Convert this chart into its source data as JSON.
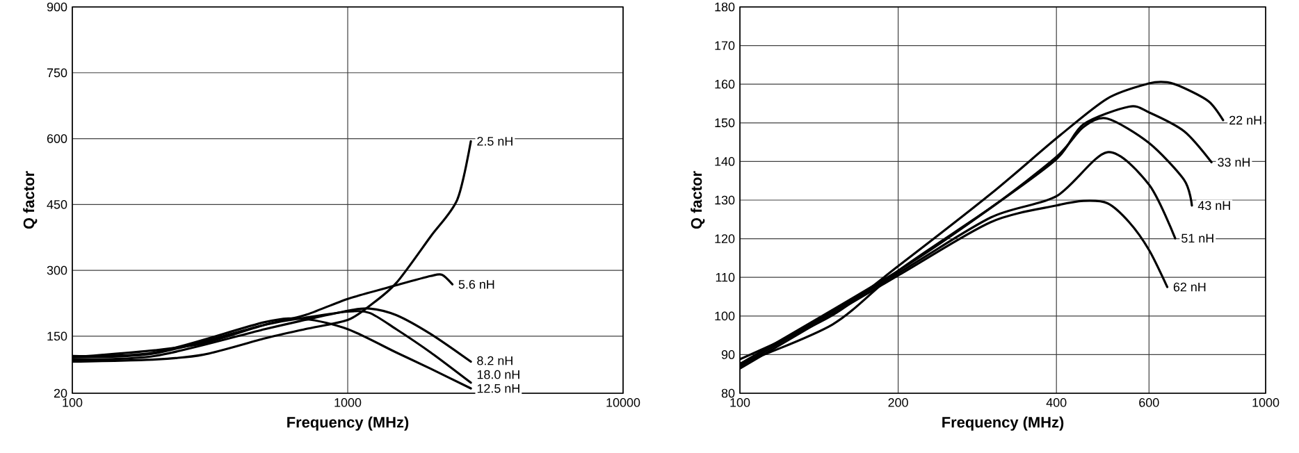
{
  "chart_data": [
    {
      "type": "line",
      "xlabel": "Frequency (MHz)",
      "ylabel": "Q factor",
      "log": "x",
      "grid": true,
      "legend": false,
      "line_style": "solid",
      "marker": "none",
      "xlim": [
        100,
        10000
      ],
      "ylim": [
        20,
        900
      ],
      "xticks": [
        100,
        1000,
        10000
      ],
      "yticks": [
        20,
        150,
        300,
        450,
        600,
        750,
        900
      ],
      "series": [
        {
          "name": "2.5 nH",
          "color": "#000000",
          "x": [
            100,
            200,
            300,
            500,
            700,
            1000,
            1200,
            1500,
            2000,
            2500,
            2800
          ],
          "values": [
            92,
            97,
            108,
            145,
            166,
            187,
            219,
            271,
            377,
            461,
            594
          ]
        },
        {
          "name": "5.6 nH",
          "color": "#000000",
          "x": [
            100,
            200,
            300,
            500,
            700,
            1000,
            1500,
            2000,
            2200,
            2400
          ],
          "values": [
            102,
            118,
            134,
            176,
            198,
            235,
            266,
            287,
            290,
            268
          ]
        },
        {
          "name": "8.2 nH",
          "color": "#000000",
          "x": [
            100,
            200,
            500,
            700,
            1000,
            1200,
            1500,
            2000,
            2800
          ],
          "values": [
            97,
            105,
            166,
            187,
            208,
            213,
            198,
            155,
            92
          ]
        },
        {
          "name": "18.0 nH",
          "color": "#000000",
          "x": [
            100,
            200,
            500,
            700,
            1000,
            1200,
            1500,
            2000,
            2800
          ],
          "values": [
            102,
            111,
            176,
            192,
            206,
            203,
            166,
            113,
            44
          ]
        },
        {
          "name": "12.5 nH",
          "color": "#000000",
          "x": [
            100,
            200,
            500,
            700,
            1000,
            1500,
            2000,
            2800
          ],
          "values": [
            105,
            113,
            182,
            189,
            166,
            113,
            76,
            31
          ]
        }
      ]
    },
    {
      "type": "line",
      "xlabel": "Frequency (MHz)",
      "ylabel": "Q factor",
      "log": "x",
      "grid": true,
      "legend": false,
      "line_style": "solid",
      "marker": "none",
      "xlim": [
        100,
        1000
      ],
      "ylim": [
        80,
        180
      ],
      "xticks": [
        100,
        200,
        400,
        600,
        1000
      ],
      "yticks": [
        80,
        90,
        100,
        110,
        120,
        130,
        140,
        150,
        160,
        170,
        180
      ],
      "series": [
        {
          "name": "22 nH",
          "color": "#000000",
          "x": [
            100,
            150,
            200,
            300,
            400,
            500,
            600,
            650,
            700,
            780,
            830
          ],
          "values": [
            88.8,
            100.2,
            112.9,
            131.6,
            146,
            156.3,
            160.2,
            160.5,
            159,
            155.5,
            150.7
          ]
        },
        {
          "name": "33 nH",
          "color": "#000000",
          "x": [
            100,
            150,
            200,
            300,
            400,
            450,
            550,
            600,
            700,
            789
          ],
          "values": [
            87.6,
            97.8,
            111.7,
            128,
            140.6,
            149.6,
            154.2,
            152.7,
            147.8,
            139.8
          ]
        },
        {
          "name": "43 nH",
          "color": "#000000",
          "x": [
            100,
            200,
            300,
            400,
            450,
            500,
            600,
            700,
            724
          ],
          "values": [
            87.6,
            111.7,
            128,
            141.2,
            148.9,
            151.1,
            144.8,
            135.2,
            128.6
          ]
        },
        {
          "name": "51 nH",
          "color": "#000000",
          "x": [
            100,
            200,
            300,
            400,
            500,
            600,
            673
          ],
          "values": [
            87,
            111.1,
            125.5,
            131,
            142.4,
            134,
            120.1
          ]
        },
        {
          "name": "62 nH",
          "color": "#000000",
          "x": [
            100,
            200,
            300,
            400,
            450,
            500,
            550,
            600,
            650
          ],
          "values": [
            86.4,
            110.5,
            124.3,
            128.6,
            129.8,
            129.2,
            124.3,
            117.1,
            107.5
          ]
        }
      ]
    }
  ]
}
